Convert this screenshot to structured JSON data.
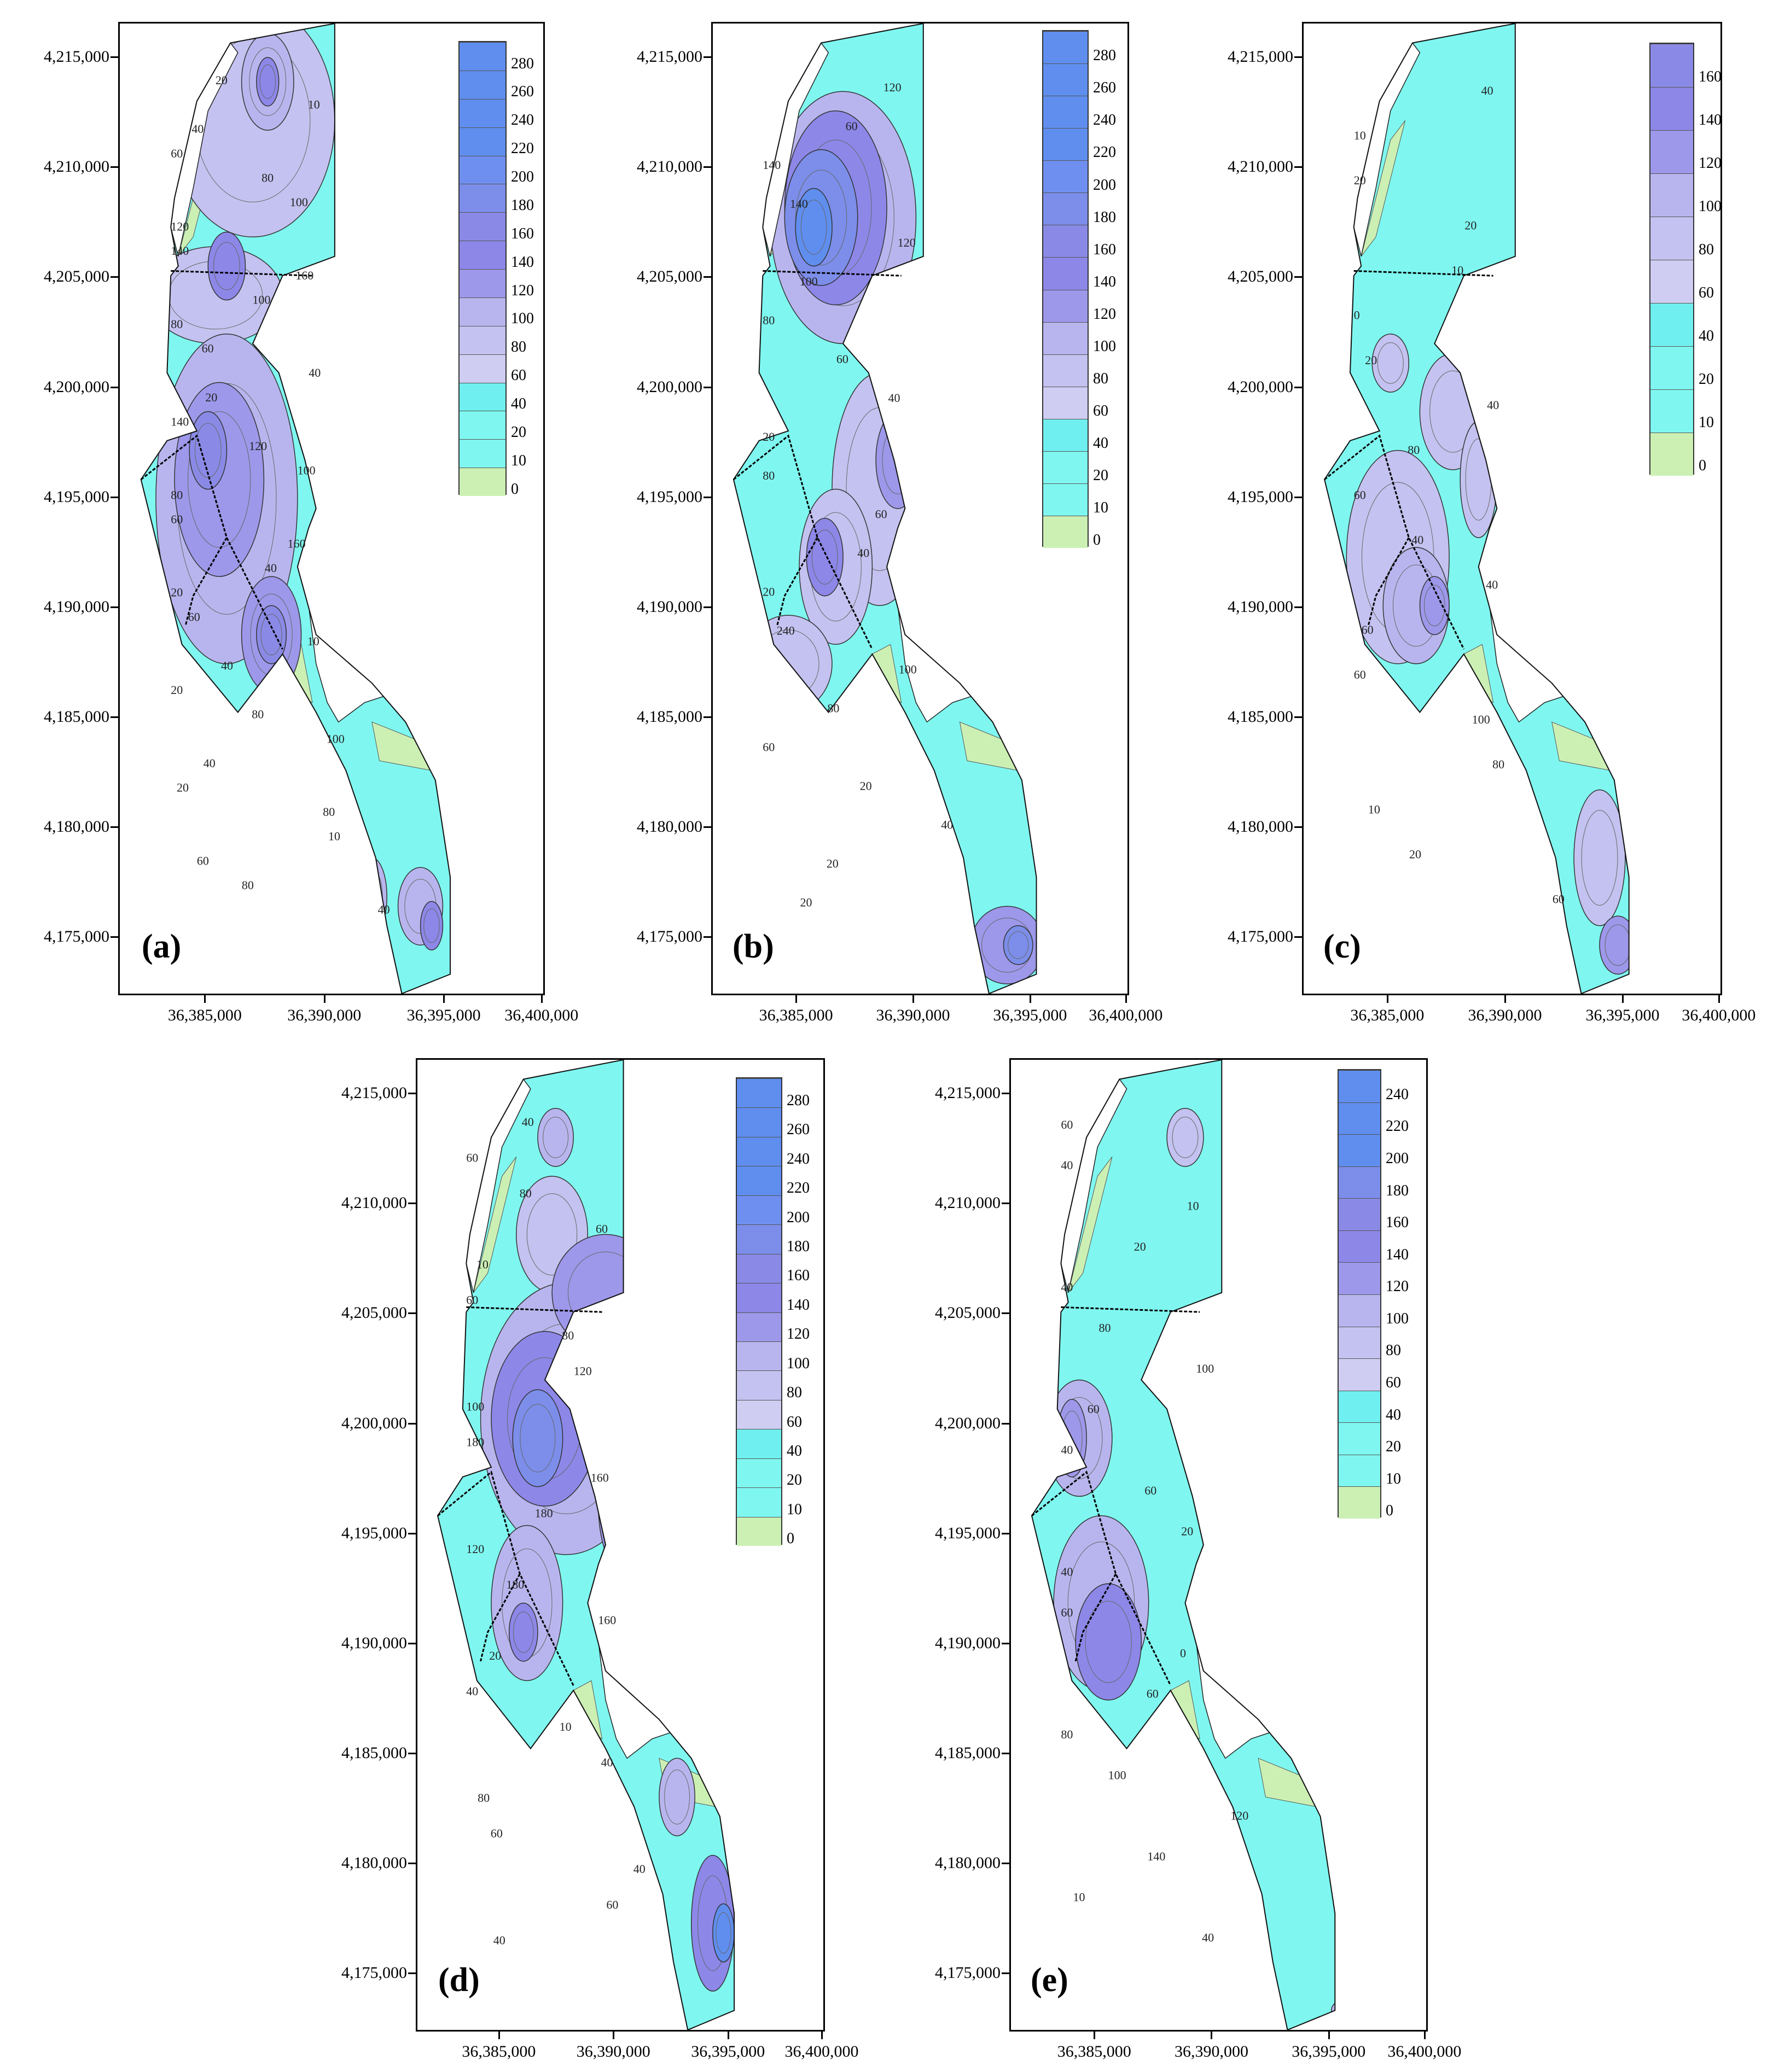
{
  "y_ticks": [
    "4,215,000",
    "4,210,000",
    "4,205,000",
    "4,200,000",
    "4,195,000",
    "4,190,000",
    "4,185,000",
    "4,180,000",
    "4,175,000"
  ],
  "x_ticks": [
    "36,385,000",
    "36,390,000",
    "36,395,000",
    "36,400,000"
  ],
  "panels": [
    {
      "label": "(a)",
      "legend": [
        "280",
        "260",
        "240",
        "220",
        "200",
        "180",
        "160",
        "140",
        "120",
        "100",
        "80",
        "60",
        "40",
        "20",
        "10",
        "0"
      ],
      "contour_labels": [
        "20",
        "10",
        "40",
        "60",
        "80",
        "100",
        "120",
        "140",
        "160",
        "100",
        "80",
        "60",
        "40",
        "20",
        "140",
        "120",
        "100",
        "80",
        "60",
        "160",
        "40",
        "20",
        "60",
        "10",
        "40",
        "20",
        "80",
        "100",
        "40",
        "20",
        "80",
        "10",
        "60",
        "80",
        "40"
      ]
    },
    {
      "label": "(b)",
      "legend": [
        "280",
        "260",
        "240",
        "220",
        "200",
        "180",
        "160",
        "140",
        "120",
        "100",
        "80",
        "60",
        "40",
        "20",
        "10",
        "0"
      ],
      "contour_labels": [
        "120",
        "60",
        "140",
        "140",
        "120",
        "100",
        "80",
        "60",
        "40",
        "20",
        "80",
        "60",
        "40",
        "20",
        "240",
        "100",
        "80",
        "60",
        "20",
        "40",
        "20",
        "20"
      ]
    },
    {
      "label": "(c)",
      "legend": [
        "160",
        "140",
        "120",
        "100",
        "80",
        "60",
        "40",
        "20",
        "10",
        "0"
      ],
      "contour_labels": [
        "40",
        "10",
        "20",
        "20",
        "10",
        "0",
        "20",
        "40",
        "80",
        "60",
        "40",
        "40",
        "60",
        "60",
        "100",
        "80",
        "10",
        "20",
        "60"
      ]
    },
    {
      "label": "(d)",
      "legend": [
        "280",
        "260",
        "240",
        "220",
        "200",
        "180",
        "160",
        "140",
        "120",
        "100",
        "80",
        "60",
        "40",
        "20",
        "10",
        "0"
      ],
      "contour_labels": [
        "40",
        "60",
        "80",
        "60",
        "10",
        "60",
        "80",
        "120",
        "100",
        "180",
        "160",
        "180",
        "120",
        "180",
        "160",
        "20",
        "40",
        "10",
        "40",
        "80",
        "60",
        "40",
        "60",
        "40"
      ]
    },
    {
      "label": "(e)",
      "legend": [
        "240",
        "220",
        "200",
        "180",
        "160",
        "140",
        "120",
        "100",
        "80",
        "60",
        "40",
        "20",
        "10",
        "0"
      ],
      "contour_labels": [
        "60",
        "40",
        "10",
        "20",
        "40",
        "80",
        "100",
        "60",
        "40",
        "60",
        "20",
        "40",
        "60",
        "0",
        "60",
        "80",
        "100",
        "120",
        "140",
        "10",
        "40"
      ]
    }
  ],
  "colors": {
    "c0": "#ccf0b4",
    "c10": "#7ff7f0",
    "c20": "#7ff7f0",
    "c40": "#6fefef",
    "c60": "#cfcdf2",
    "c80": "#c4c2f0",
    "c100": "#b8b5ee",
    "c120": "#9d98ea",
    "c140": "#8d87e8",
    "c160": "#8a8ae6",
    "c180": "#7c8eea",
    "c200": "#6f8ff0",
    "high": "#5f8eef"
  }
}
